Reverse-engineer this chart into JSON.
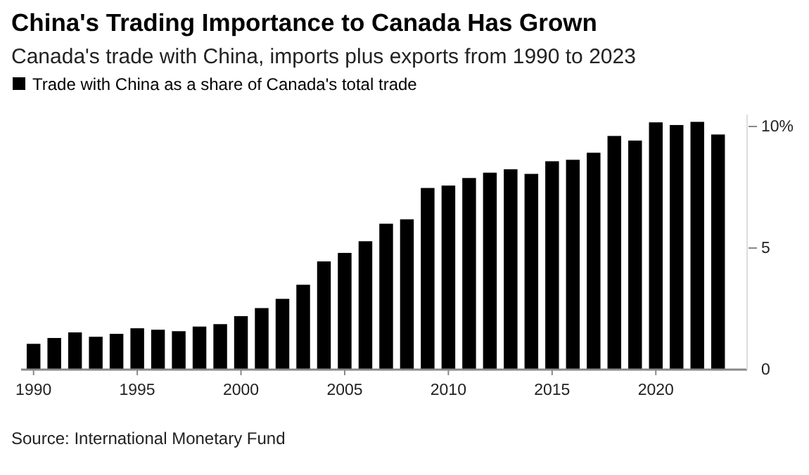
{
  "chart_data": {
    "type": "bar",
    "title": "China's Trading Importance to Canada Has Grown",
    "subtitle": "Canada's trade with China, imports plus exports from 1990 to 2023",
    "annotations": [
      "Source: International Monetary Fund"
    ],
    "x": [
      1990,
      1991,
      1992,
      1993,
      1994,
      1995,
      1996,
      1997,
      1998,
      1999,
      2000,
      2001,
      2002,
      2003,
      2004,
      2005,
      2006,
      2007,
      2008,
      2009,
      2010,
      2011,
      2012,
      2013,
      2014,
      2015,
      2016,
      2017,
      2018,
      2019,
      2020,
      2021,
      2022,
      2023
    ],
    "series": [
      {
        "name": "Trade with China as a share of Canada's total trade",
        "color": "#000000",
        "values": [
          1.06,
          1.3,
          1.53,
          1.35,
          1.47,
          1.7,
          1.64,
          1.58,
          1.77,
          1.87,
          2.2,
          2.53,
          2.91,
          3.49,
          4.45,
          4.8,
          5.28,
          6.0,
          6.18,
          7.47,
          7.57,
          7.88,
          8.1,
          8.24,
          8.05,
          8.57,
          8.63,
          8.92,
          9.61,
          9.42,
          10.17,
          10.06,
          10.19,
          9.67
        ]
      }
    ],
    "xlim": [
      1989.4,
      2024.4
    ],
    "xticks": [
      1990,
      1995,
      2000,
      2005,
      2010,
      2015,
      2020
    ],
    "ylim": [
      0,
      10.5
    ],
    "yticks": [
      0,
      5,
      {
        "value": 10,
        "label": "10%"
      }
    ],
    "grid": false,
    "legend": "top left"
  }
}
